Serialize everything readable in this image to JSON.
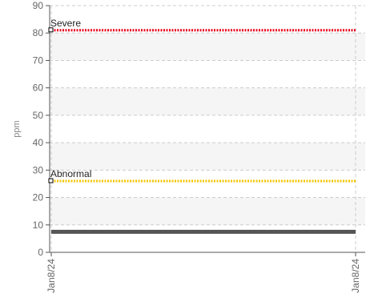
{
  "chart_data": {
    "type": "line",
    "ylabel": "ppm",
    "xlabel": "",
    "title": "",
    "ylim": [
      0,
      90
    ],
    "yticks": [
      0,
      10,
      20,
      30,
      40,
      50,
      60,
      70,
      80,
      90
    ],
    "x_tick_labels": [
      "Jan8/24",
      "Jan8/24"
    ],
    "grid": true,
    "thresholds": [
      {
        "label": "Severe",
        "value": 81,
        "color": "#e8001c",
        "style": "dotted"
      },
      {
        "label": "Abnormal",
        "value": 26,
        "color": "#f5c400",
        "style": "dotted"
      }
    ],
    "series": [
      {
        "values": [
          7.5,
          7.5
        ],
        "color": "#555555"
      }
    ],
    "band_color": "#f5f5f5"
  }
}
